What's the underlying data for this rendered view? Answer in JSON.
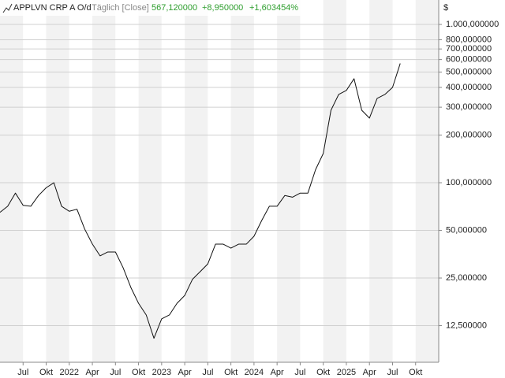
{
  "chart_data": {
    "type": "line",
    "title": "APPLVN CRP A O/d",
    "interval": "Täglich [Close]",
    "last": "567,120000",
    "change": "+8,950000",
    "change_pct": "+1,603454%",
    "currency": "$",
    "change_color": "#2e9e2e",
    "color": "#111111",
    "log_scale": true,
    "grid": true,
    "x": [
      "2021-04",
      "2021-05",
      "2021-06",
      "2021-07",
      "2021-08",
      "2021-09",
      "2021-10",
      "2021-11",
      "2021-12",
      "2022-01",
      "2022-02",
      "2022-03",
      "2022-04",
      "2022-05",
      "2022-06",
      "2022-07",
      "2022-08",
      "2022-09",
      "2022-10",
      "2022-11",
      "2022-12",
      "2023-01",
      "2023-02",
      "2023-03",
      "2023-04",
      "2023-05",
      "2023-06",
      "2023-07",
      "2023-08",
      "2023-09",
      "2023-10",
      "2023-11",
      "2023-12",
      "2024-01",
      "2024-02",
      "2024-03",
      "2024-04",
      "2024-05",
      "2024-06",
      "2024-07",
      "2024-08",
      "2024-09",
      "2024-10",
      "2024-11",
      "2024-12",
      "2025-01",
      "2025-02",
      "2025-03",
      "2025-04",
      "2025-05",
      "2025-06",
      "2025-07",
      "2025-08"
    ],
    "values": [
      65,
      71,
      86,
      72,
      71,
      83,
      93,
      100,
      71,
      66,
      68,
      51,
      41,
      34.5,
      36.5,
      36.5,
      29,
      21.8,
      17.3,
      14.6,
      10.4,
      13.8,
      14.6,
      17.3,
      19.4,
      24.5,
      27.4,
      30.7,
      40.9,
      40.9,
      38.6,
      40.9,
      40.9,
      45.9,
      57.7,
      71,
      71,
      83,
      81,
      86,
      86,
      121,
      153,
      287,
      361,
      383,
      454,
      287,
      256,
      341,
      361,
      400,
      567.12
    ],
    "xlim": [
      "2021-04",
      "2026-01"
    ],
    "xticks": [
      {
        "value": "2021-07",
        "label": "Jul"
      },
      {
        "value": "2021-10",
        "label": "Okt"
      },
      {
        "value": "2022-01",
        "label": "2022"
      },
      {
        "value": "2022-04",
        "label": "Apr"
      },
      {
        "value": "2022-07",
        "label": "Jul"
      },
      {
        "value": "2022-10",
        "label": "Okt"
      },
      {
        "value": "2023-01",
        "label": "2023"
      },
      {
        "value": "2023-04",
        "label": "Apr"
      },
      {
        "value": "2023-07",
        "label": "Jul"
      },
      {
        "value": "2023-10",
        "label": "Okt"
      },
      {
        "value": "2024-01",
        "label": "2024"
      },
      {
        "value": "2024-04",
        "label": "Apr"
      },
      {
        "value": "2024-07",
        "label": "Jul"
      },
      {
        "value": "2024-10",
        "label": "Okt"
      },
      {
        "value": "2025-01",
        "label": "2025"
      },
      {
        "value": "2025-04",
        "label": "Apr"
      },
      {
        "value": "2025-07",
        "label": "Jul"
      },
      {
        "value": "2025-10",
        "label": "Okt"
      }
    ],
    "ylim": [
      7.34,
      1427
    ],
    "yticks": [
      {
        "value": 1000,
        "label": "1.000,000000"
      },
      {
        "value": 800,
        "label": "800,000000"
      },
      {
        "value": 700,
        "label": "700,000000"
      },
      {
        "value": 600,
        "label": "600,000000"
      },
      {
        "value": 500,
        "label": "500,000000"
      },
      {
        "value": 400,
        "label": "400,000000"
      },
      {
        "value": 300,
        "label": "300,000000"
      },
      {
        "value": 200,
        "label": "200,000000"
      },
      {
        "value": 100,
        "label": "100,000000"
      },
      {
        "value": 50,
        "label": "50,000000"
      },
      {
        "value": 25,
        "label": "25,000000"
      },
      {
        "value": 12.5,
        "label": "12,500000"
      }
    ]
  }
}
